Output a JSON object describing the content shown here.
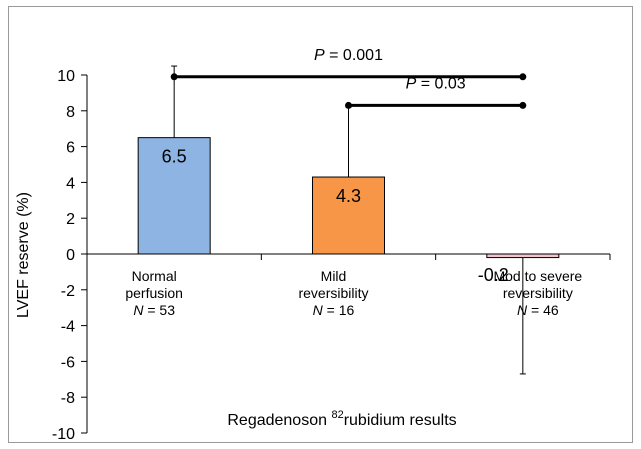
{
  "chart_data": {
    "type": "bar",
    "ylabel": "LVEF reserve (%)",
    "xlabel": {
      "main": "Regadenoson ",
      "superscript": "82",
      "suffix": "rubidium results"
    },
    "ylim": [
      -10,
      10
    ],
    "yticks": [
      10,
      8,
      6,
      4,
      2,
      0,
      -2,
      -4,
      -6,
      -8,
      -10
    ],
    "grid": false,
    "categories": [
      {
        "line1": "Normal",
        "line2": "perfusion",
        "n_prefix": "N",
        "n_suffix": " = 53"
      },
      {
        "line1": "Mild",
        "line2": "reversibility",
        "n_prefix": "N",
        "n_suffix": " = 16"
      },
      {
        "line1": "Mod to severe",
        "line2": "reversibility",
        "n_prefix": "N",
        "n_suffix": " = 46"
      }
    ],
    "values": [
      6.5,
      4.3,
      -0.2
    ],
    "value_labels": [
      "6.5",
      "4.3",
      "-0.2"
    ],
    "error_bars": [
      {
        "upper": 10.5
      },
      {
        "upper": 8.2
      },
      {
        "lower": -6.7
      }
    ],
    "bar_colors": [
      "#8db4e2",
      "#f79646",
      "#f2c6cc"
    ],
    "bar_edge_color": "#000000",
    "annotations": [
      {
        "from": 0,
        "to": 2,
        "y": 9.9,
        "label_prefix": "P",
        "label_suffix": " = 0.001"
      },
      {
        "from": 1,
        "to": 2,
        "y": 8.3,
        "label_prefix": "P",
        "label_suffix": " = 0.03"
      }
    ]
  }
}
